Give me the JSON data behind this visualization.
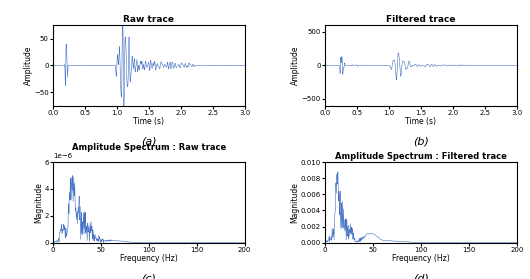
{
  "fig_width": 5.3,
  "fig_height": 2.79,
  "dpi": 100,
  "bg_color": "#ffffff",
  "line_color": "#4472c4",
  "titles": [
    "Raw trace",
    "Filtered trace",
    "Amplitude Spectrum : Raw trace",
    "Amplitude Spectrum : Filtered trace"
  ],
  "xlabels": [
    "Time (s)",
    "Time (s)",
    "Frequency (Hz)",
    "Frequency (Hz)"
  ],
  "ylabels": [
    "Amplitude",
    "Amplitude",
    "Magnitude",
    "Magnitude"
  ],
  "panel_labels": [
    "(a)",
    "(b)",
    "(c)",
    "(d)"
  ],
  "time_xlim": [
    0,
    3
  ],
  "freq_xlim": [
    0,
    200
  ],
  "raw_ylim": [
    -75,
    75
  ],
  "filt_ylim": [
    -600,
    600
  ],
  "raw_spec_ylim": [
    0,
    6e-06
  ],
  "filt_spec_ylim": [
    0,
    0.01
  ],
  "raw_yticks": [
    -50,
    0,
    50
  ],
  "filt_yticks": [
    -500,
    0,
    500
  ],
  "filt_spec_yticks": [
    0,
    0.002,
    0.004,
    0.006,
    0.008,
    0.01
  ],
  "time_xticks": [
    0,
    0.5,
    1,
    1.5,
    2,
    2.5,
    3
  ],
  "freq_xticks": [
    0,
    50,
    100,
    150,
    200
  ],
  "seed": 42
}
